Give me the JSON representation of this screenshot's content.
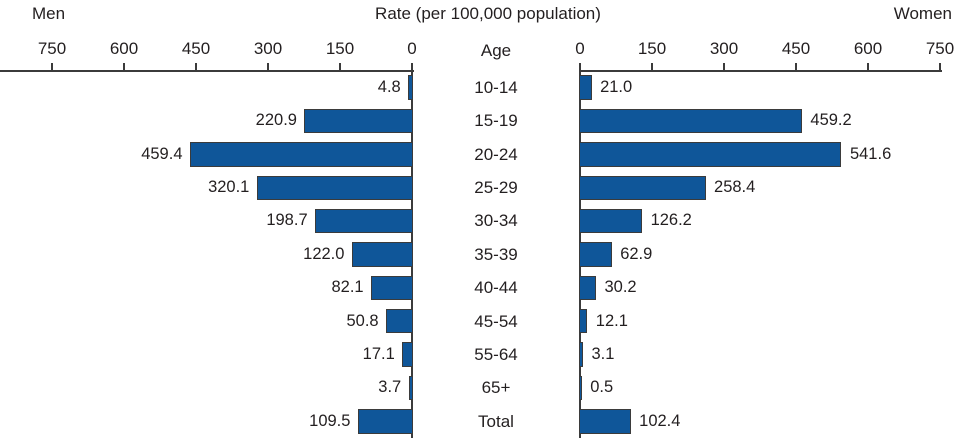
{
  "chart_data": {
    "type": "bar",
    "orientation": "horizontal-pyramid",
    "title": "Rate (per 100,000 population)",
    "left_series_label": "Men",
    "right_series_label": "Women",
    "age_column_label": "Age",
    "categories": [
      "10-14",
      "15-19",
      "20-24",
      "25-29",
      "30-34",
      "35-39",
      "40-44",
      "45-54",
      "55-64",
      "65+",
      "Total"
    ],
    "series": [
      {
        "name": "Men",
        "side": "left",
        "values": [
          4.8,
          220.9,
          459.4,
          320.1,
          198.7,
          122.0,
          82.1,
          50.8,
          17.1,
          3.7,
          109.5
        ],
        "labels": [
          "4.8",
          "220.9",
          "459.4",
          "320.1",
          "198.7",
          "122.0",
          "82.1",
          "50.8",
          "17.1",
          "3.7",
          "109.5"
        ]
      },
      {
        "name": "Women",
        "side": "right",
        "values": [
          21.0,
          459.2,
          541.6,
          258.4,
          126.2,
          62.9,
          30.2,
          12.1,
          3.1,
          0.5,
          102.4
        ],
        "labels": [
          "21.0",
          "459.2",
          "541.6",
          "258.4",
          "126.2",
          "62.9",
          "30.2",
          "12.1",
          "3.1",
          "0.5",
          "102.4"
        ]
      }
    ],
    "axis": {
      "min": 0,
      "max": 750,
      "tick_interval": 150,
      "ticks": [
        0,
        150,
        300,
        450,
        600,
        750
      ],
      "grid": false
    },
    "legend_position": "top-corners",
    "colors": {
      "bar_fill": "#0f5699",
      "bar_border": "#3b3b3b",
      "axis_line": "#3b3b3b",
      "text": "#231f20"
    }
  }
}
